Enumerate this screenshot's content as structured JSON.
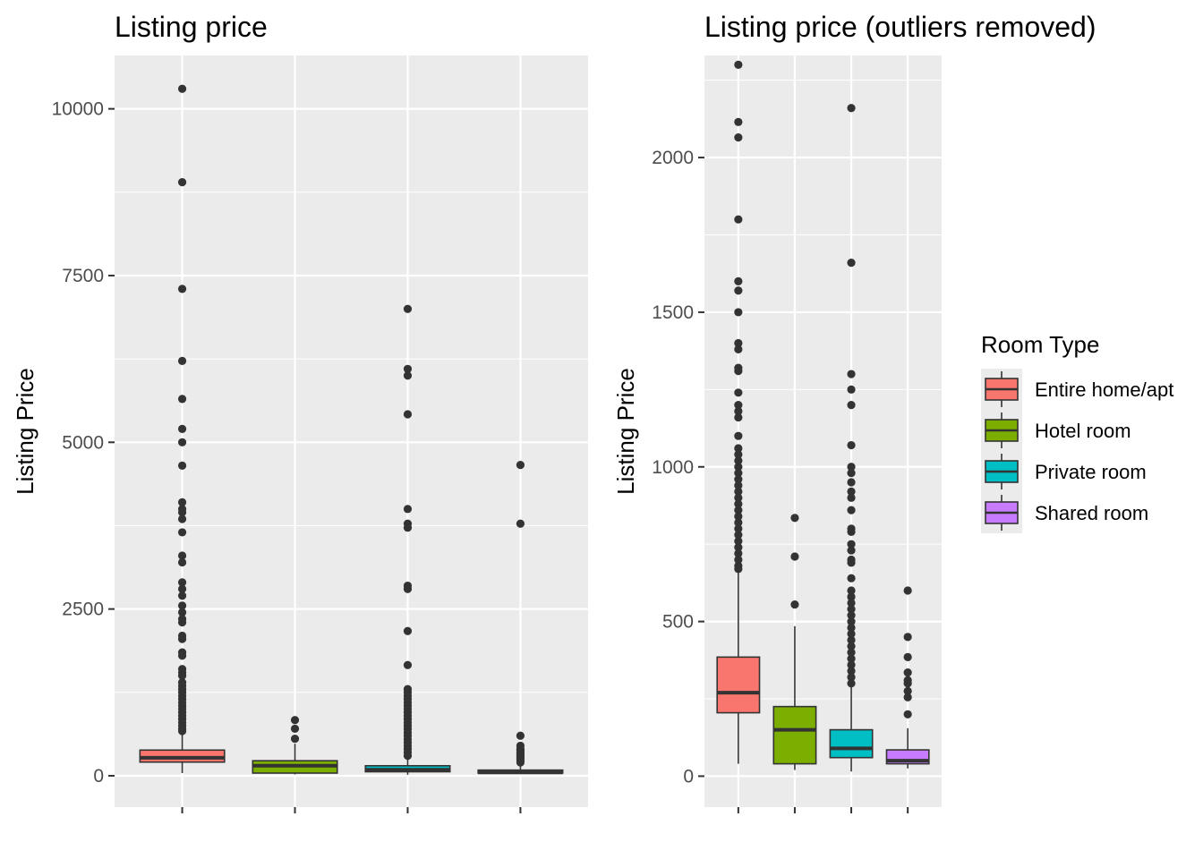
{
  "chart_data": [
    {
      "type": "boxplot",
      "title": "Listing price",
      "ylabel": "Listing Price",
      "xlabel": "",
      "ylim": [
        -470,
        10800
      ],
      "yticks": [
        0,
        2500,
        5000,
        7500,
        10000
      ],
      "grid": true,
      "categories": [
        "Entire home/apt",
        "Hotel room",
        "Private room",
        "Shared room"
      ],
      "series": [
        {
          "name": "Entire home/apt",
          "color": "#F8766D",
          "q1": 205,
          "median": 270,
          "q3": 385,
          "whisker_low": 40,
          "whisker_high": 650,
          "outliers": [
            10300,
            8900,
            7300,
            6220,
            5650,
            5200,
            5000,
            4650,
            4100,
            4000,
            3950,
            3850,
            3650,
            3300,
            3200,
            2900,
            2800,
            2700,
            2550,
            2450,
            2350,
            2300,
            2100,
            2050,
            1850,
            1800,
            1600,
            1550,
            1500,
            1400,
            1350,
            1300,
            1250,
            1200,
            1150,
            1100,
            1050,
            1000,
            950,
            900,
            850,
            800,
            750,
            700,
            670
          ]
        },
        {
          "name": "Hotel room",
          "color": "#7CAE00",
          "q1": 40,
          "median": 150,
          "q3": 225,
          "whisker_low": 20,
          "whisker_high": 480,
          "outliers": [
            835,
            705,
            555
          ]
        },
        {
          "name": "Private room",
          "color": "#00BFC4",
          "q1": 60,
          "median": 90,
          "q3": 150,
          "whisker_low": 15,
          "whisker_high": 280,
          "outliers": [
            7000,
            6100,
            6000,
            5420,
            4000,
            3780,
            3720,
            2850,
            2800,
            2170,
            1660,
            1300,
            1250,
            1200,
            1150,
            1100,
            1050,
            1000,
            950,
            900,
            850,
            800,
            750,
            700,
            650,
            600,
            550,
            500,
            450,
            400,
            350,
            300
          ]
        },
        {
          "name": "Shared room",
          "color": "#C77CFF",
          "q1": 40,
          "median": 50,
          "q3": 85,
          "whisker_low": 25,
          "whisker_high": 155,
          "outliers": [
            4660,
            3780,
            600,
            450,
            400,
            380,
            350,
            330,
            310,
            290,
            270,
            250,
            230,
            200
          ]
        }
      ]
    },
    {
      "type": "boxplot",
      "title": "Listing price (outliers removed)",
      "ylabel": "Listing Price",
      "xlabel": "",
      "ylim": [
        -100,
        2330
      ],
      "yticks": [
        0,
        500,
        1000,
        1500,
        2000
      ],
      "grid": true,
      "categories": [
        "Entire home/apt",
        "Hotel room",
        "Private room",
        "Shared room"
      ],
      "series": [
        {
          "name": "Entire home/apt",
          "color": "#F8766D",
          "q1": 205,
          "median": 270,
          "q3": 385,
          "whisker_low": 40,
          "whisker_high": 660,
          "outliers": [
            2300,
            2115,
            2065,
            1800,
            1600,
            1570,
            1500,
            1400,
            1380,
            1320,
            1310,
            1240,
            1200,
            1180,
            1160,
            1100,
            1060,
            1040,
            1020,
            1000,
            980,
            960,
            940,
            920,
            900,
            880,
            860,
            840,
            820,
            800,
            780,
            760,
            740,
            720,
            700,
            680,
            670
          ]
        },
        {
          "name": "Hotel room",
          "color": "#7CAE00",
          "q1": 40,
          "median": 150,
          "q3": 225,
          "whisker_low": 20,
          "whisker_high": 485,
          "outliers": [
            835,
            710,
            555
          ]
        },
        {
          "name": "Private room",
          "color": "#00BFC4",
          "q1": 60,
          "median": 90,
          "q3": 150,
          "whisker_low": 15,
          "whisker_high": 290,
          "outliers": [
            2160,
            1660,
            1300,
            1250,
            1200,
            1070,
            1000,
            980,
            950,
            920,
            900,
            860,
            800,
            790,
            750,
            730,
            700,
            690,
            640,
            600,
            580,
            560,
            540,
            520,
            500,
            480,
            460,
            440,
            420,
            400,
            380,
            360,
            340,
            320,
            300
          ]
        },
        {
          "name": "Shared room",
          "color": "#C77CFF",
          "q1": 40,
          "median": 50,
          "q3": 85,
          "whisker_low": 25,
          "whisker_high": 155,
          "outliers": [
            600,
            450,
            385,
            335,
            310,
            300,
            275,
            255,
            200
          ]
        }
      ]
    }
  ],
  "legend": {
    "title": "Room Type",
    "position": "right",
    "items": [
      {
        "label": "Entire home/apt",
        "color": "#F8766D"
      },
      {
        "label": "Hotel room",
        "color": "#7CAE00"
      },
      {
        "label": "Private room",
        "color": "#00BFC4"
      },
      {
        "label": "Shared room",
        "color": "#C77CFF"
      }
    ]
  }
}
